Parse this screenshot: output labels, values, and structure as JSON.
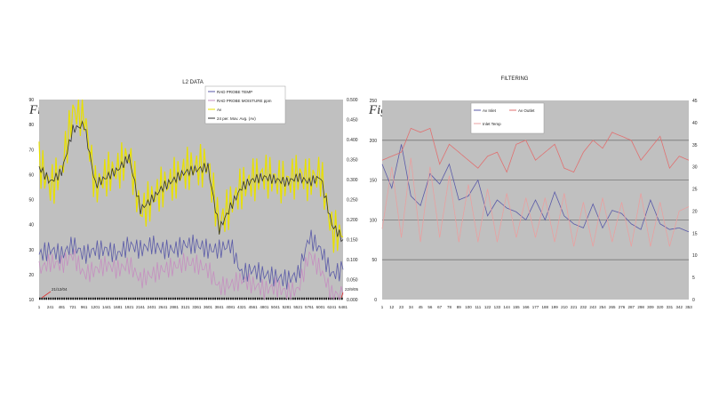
{
  "figures": {
    "fig6": "Figure 6.",
    "fig7": "Figure 7."
  },
  "chart_data": [
    {
      "type": "line",
      "title": "L2 DATA",
      "x_ticks": [
        "1",
        "241",
        "481",
        "721",
        "961",
        "1201",
        "1441",
        "1681",
        "1921",
        "2161",
        "2401",
        "2641",
        "2881",
        "3121",
        "3361",
        "3601",
        "3841",
        "4081",
        "4321",
        "4561",
        "4801",
        "5041",
        "5281",
        "5521",
        "5761",
        "6001",
        "6241",
        "6481"
      ],
      "ylim": [
        10,
        90
      ],
      "y_ticks": [
        "10",
        "20",
        "30",
        "40",
        "50",
        "60",
        "70",
        "80",
        "90"
      ],
      "y2lim": [
        0,
        0.5
      ],
      "y2_ticks": [
        "0.000",
        "0.050",
        "0.100",
        "0.150",
        "0.200",
        "0.250",
        "0.300",
        "0.350",
        "0.400",
        "0.450",
        "0.500"
      ],
      "annotations": [
        "21/12/04",
        "22/9/05"
      ],
      "series": [
        {
          "name": "RAD PROBE TEMP",
          "color": "#5a5aa8",
          "values": [
            28,
            30,
            28,
            32,
            28,
            30,
            30,
            28,
            32,
            30,
            32,
            30,
            30,
            32,
            32,
            30,
            30,
            32,
            20,
            22,
            20,
            19,
            18,
            20,
            35,
            30,
            20,
            22
          ]
        },
        {
          "name": "RAD PROBE MOISTURE ppm",
          "color": "#c58fc0",
          "values": [
            22,
            25,
            24,
            28,
            20,
            22,
            24,
            22,
            24,
            18,
            20,
            22,
            23,
            25,
            24,
            22,
            15,
            16,
            18,
            16,
            14,
            15,
            13,
            14,
            28,
            22,
            12,
            12
          ]
        },
        {
          "name": "Av",
          "color": "#e8e000",
          "values": [
            65,
            55,
            62,
            85,
            84,
            55,
            60,
            62,
            68,
            45,
            50,
            55,
            58,
            62,
            63,
            64,
            40,
            48,
            55,
            58,
            60,
            58,
            57,
            60,
            58,
            60,
            38,
            35
          ]
        },
        {
          "name": "24 per. Mov. Avg. (Av)",
          "color": "#333333",
          "values": [
            63,
            57,
            61,
            78,
            80,
            56,
            59,
            62,
            67,
            46,
            50,
            55,
            58,
            61,
            62,
            63,
            38,
            47,
            55,
            58,
            59,
            58,
            57,
            59,
            57,
            59,
            40,
            34
          ]
        }
      ]
    },
    {
      "type": "line",
      "title": "FILTERING",
      "x_ticks": [
        "1",
        "12",
        "23",
        "34",
        "45",
        "56",
        "67",
        "78",
        "89",
        "100",
        "111",
        "122",
        "133",
        "144",
        "155",
        "166",
        "177",
        "188",
        "199",
        "210",
        "221",
        "232",
        "243",
        "254",
        "265",
        "276",
        "287",
        "298",
        "309",
        "320",
        "331",
        "342",
        "353"
      ],
      "ylim": [
        0,
        250
      ],
      "y_ticks": [
        "0",
        "50",
        "100",
        "150",
        "200",
        "250"
      ],
      "y2lim": [
        0,
        45
      ],
      "y2_ticks": [
        "0",
        "5",
        "10",
        "15",
        "20",
        "25",
        "30",
        "35",
        "40",
        "45"
      ],
      "grid": true,
      "series": [
        {
          "name": "Av Inlet",
          "axis": "left",
          "color": "#5a5aa8",
          "values": [
            170,
            140,
            195,
            130,
            118,
            158,
            145,
            170,
            125,
            130,
            150,
            105,
            125,
            115,
            110,
            100,
            125,
            100,
            135,
            105,
            95,
            90,
            120,
            90,
            112,
            108,
            95,
            88,
            125,
            95,
            88,
            90,
            85
          ]
        },
        {
          "name": "Av Outlet",
          "axis": "left",
          "color": "#e07070",
          "values": [
            175,
            180,
            185,
            215,
            210,
            215,
            170,
            195,
            185,
            175,
            165,
            180,
            185,
            160,
            195,
            200,
            175,
            185,
            195,
            165,
            160,
            185,
            200,
            190,
            210,
            205,
            200,
            175,
            190,
            205,
            165,
            180,
            175
          ]
        },
        {
          "name": "Inlet Temp",
          "axis": "right",
          "color": "#e8a0a0",
          "values": [
            16,
            30,
            14,
            32,
            13,
            30,
            14,
            28,
            13,
            26,
            13,
            25,
            13,
            24,
            14,
            23,
            14,
            23,
            13,
            24,
            12,
            22,
            12,
            23,
            13,
            22,
            12,
            24,
            12,
            22,
            12,
            20,
            21
          ]
        }
      ]
    }
  ]
}
